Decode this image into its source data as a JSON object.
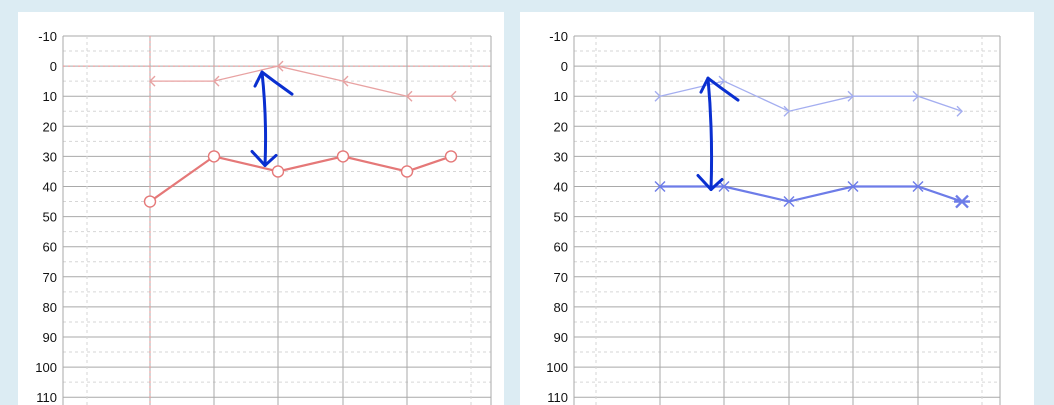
{
  "chart_data": [
    {
      "type": "line",
      "name_hidden": true,
      "yticks": [
        "-10",
        "0",
        "10",
        "20",
        "30",
        "40",
        "50",
        "60",
        "70",
        "80",
        "90",
        "100",
        "110"
      ],
      "ylim": [
        -10,
        110
      ],
      "y_inverted": true,
      "grid": true,
      "series": [
        {
          "marker": "chevron-left",
          "color": "#e8a2a2",
          "points": [
            [
              1,
              5
            ],
            [
              2,
              5
            ],
            [
              3,
              0
            ],
            [
              4,
              5
            ],
            [
              5,
              10
            ],
            [
              6,
              10
            ]
          ]
        },
        {
          "marker": "circle",
          "color": "#e57878",
          "points": [
            [
              1,
              45
            ],
            [
              2,
              30
            ],
            [
              3,
              35
            ],
            [
              4,
              30
            ],
            [
              5,
              35
            ],
            [
              6,
              30
            ]
          ]
        }
      ],
      "annotation": {
        "type": "double-arrow",
        "color": "#0a2fd0",
        "x": 3,
        "y_from": 2,
        "y_to": 33
      }
    },
    {
      "type": "line",
      "yticks": [
        "-10",
        "0",
        "10",
        "20",
        "30",
        "40",
        "50",
        "60",
        "70",
        "80",
        "90",
        "100",
        "110"
      ],
      "ylim": [
        -10,
        110
      ],
      "y_inverted": true,
      "grid": true,
      "series": [
        {
          "marker": "chevron-right",
          "color": "#a4aef0",
          "points": [
            [
              1,
              10
            ],
            [
              2,
              5
            ],
            [
              3,
              15
            ],
            [
              4,
              10
            ],
            [
              5,
              10
            ],
            [
              6,
              15
            ]
          ]
        },
        {
          "marker": "x",
          "color": "#6d7ce8",
          "points": [
            [
              1,
              40
            ],
            [
              2,
              40
            ],
            [
              3,
              45
            ],
            [
              4,
              40
            ],
            [
              5,
              40
            ],
            [
              6,
              45
            ]
          ]
        }
      ],
      "annotation": {
        "type": "double-arrow",
        "color": "#0a2fd0",
        "x": 2,
        "y_from": 4,
        "y_to": 41
      }
    }
  ]
}
